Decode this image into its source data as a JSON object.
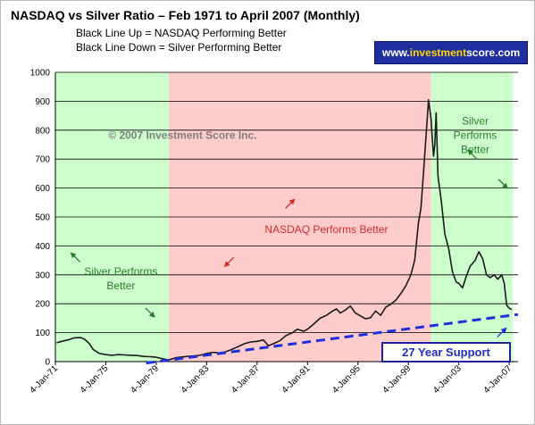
{
  "chart_data": {
    "type": "line",
    "title": "NASDAQ vs Silver Ratio – Feb 1971 to April 2007 (Monthly)",
    "subtitle_lines": [
      "Black Line Up = NASDAQ Performing Better",
      "Black Line Down = Silver Performing Better"
    ],
    "watermark": "www.investmentscore.com",
    "watermark_parts": {
      "prefix": "www.",
      "highlight": "investment",
      "suffix": "score.com"
    },
    "copyright": "© 2007 Investment Score Inc.",
    "xlim": [
      1971,
      2007.7
    ],
    "ylim": [
      0,
      1000
    ],
    "y_ticks": [
      0,
      100,
      200,
      300,
      400,
      500,
      600,
      700,
      800,
      900,
      1000
    ],
    "x_ticks": [
      {
        "label": "4-Jan-71",
        "x": 1971.0
      },
      {
        "label": "4-Jan-75",
        "x": 1975.0
      },
      {
        "label": "4-Jan-79",
        "x": 1979.0
      },
      {
        "label": "4-Jan-83",
        "x": 1983.0
      },
      {
        "label": "4-Jan-87",
        "x": 1987.0
      },
      {
        "label": "4-Jan-91",
        "x": 1991.0
      },
      {
        "label": "4-Jan-95",
        "x": 1995.0
      },
      {
        "label": "4-Jan-99",
        "x": 1999.0
      },
      {
        "label": "4-Jan-03",
        "x": 2003.0
      },
      {
        "label": "4-Jan-07",
        "x": 2007.0
      }
    ],
    "grid": "horizontal",
    "regions": [
      {
        "from": 1971.0,
        "to": 1980.0,
        "color": "#ccffcc",
        "label_lines": [
          "Silver Performs",
          "Better"
        ],
        "label_color": "#2e7d2e"
      },
      {
        "from": 1980.0,
        "to": 2000.8,
        "color": "#ffcccc",
        "label_lines": [
          "NASDAQ Performs Better"
        ],
        "label_color": "#d42a2a"
      },
      {
        "from": 2000.8,
        "to": 2007.3,
        "color": "#ccffcc",
        "label_lines": [
          "Silver",
          "Performs",
          "Better"
        ],
        "label_color": "#2e7d2e"
      }
    ],
    "series": [
      {
        "color": "#1a1a1a",
        "points": [
          [
            1971.1,
            65
          ],
          [
            1971.5,
            70
          ],
          [
            1972.0,
            75
          ],
          [
            1972.5,
            82
          ],
          [
            1973.0,
            83
          ],
          [
            1973.3,
            78
          ],
          [
            1973.7,
            62
          ],
          [
            1974.0,
            42
          ],
          [
            1974.5,
            28
          ],
          [
            1975.0,
            24
          ],
          [
            1975.5,
            22
          ],
          [
            1976.0,
            24
          ],
          [
            1976.5,
            23
          ],
          [
            1977.0,
            22
          ],
          [
            1977.5,
            21
          ],
          [
            1978.0,
            18
          ],
          [
            1978.5,
            17
          ],
          [
            1979.0,
            15
          ],
          [
            1979.5,
            10
          ],
          [
            1980.0,
            6
          ],
          [
            1980.3,
            10
          ],
          [
            1980.6,
            14
          ],
          [
            1981.0,
            16
          ],
          [
            1981.5,
            18
          ],
          [
            1982.0,
            20
          ],
          [
            1982.5,
            22
          ],
          [
            1983.0,
            28
          ],
          [
            1983.5,
            32
          ],
          [
            1984.0,
            30
          ],
          [
            1984.5,
            34
          ],
          [
            1985.0,
            42
          ],
          [
            1985.5,
            52
          ],
          [
            1986.0,
            62
          ],
          [
            1986.5,
            68
          ],
          [
            1987.0,
            70
          ],
          [
            1987.5,
            75
          ],
          [
            1987.9,
            55
          ],
          [
            1988.3,
            62
          ],
          [
            1988.8,
            72
          ],
          [
            1989.3,
            90
          ],
          [
            1989.8,
            100
          ],
          [
            1990.2,
            112
          ],
          [
            1990.7,
            105
          ],
          [
            1991.0,
            112
          ],
          [
            1991.5,
            130
          ],
          [
            1992.0,
            150
          ],
          [
            1992.5,
            160
          ],
          [
            1993.0,
            175
          ],
          [
            1993.3,
            182
          ],
          [
            1993.6,
            168
          ],
          [
            1994.0,
            178
          ],
          [
            1994.4,
            192
          ],
          [
            1994.8,
            168
          ],
          [
            1995.2,
            158
          ],
          [
            1995.6,
            148
          ],
          [
            1996.0,
            152
          ],
          [
            1996.4,
            175
          ],
          [
            1996.8,
            160
          ],
          [
            1997.2,
            188
          ],
          [
            1997.6,
            198
          ],
          [
            1998.0,
            212
          ],
          [
            1998.4,
            235
          ],
          [
            1998.8,
            262
          ],
          [
            1999.2,
            300
          ],
          [
            1999.5,
            350
          ],
          [
            1999.8,
            480
          ],
          [
            2000.0,
            530
          ],
          [
            2000.2,
            650
          ],
          [
            2000.4,
            780
          ],
          [
            2000.6,
            905
          ],
          [
            2000.8,
            840
          ],
          [
            2000.9,
            770
          ],
          [
            2001.0,
            710
          ],
          [
            2001.1,
            750
          ],
          [
            2001.2,
            860
          ],
          [
            2001.35,
            640
          ],
          [
            2001.6,
            560
          ],
          [
            2001.9,
            440
          ],
          [
            2002.2,
            390
          ],
          [
            2002.5,
            310
          ],
          [
            2002.8,
            275
          ],
          [
            2003.0,
            270
          ],
          [
            2003.3,
            255
          ],
          [
            2003.6,
            295
          ],
          [
            2003.9,
            330
          ],
          [
            2004.3,
            350
          ],
          [
            2004.6,
            380
          ],
          [
            2004.9,
            355
          ],
          [
            2005.2,
            300
          ],
          [
            2005.5,
            290
          ],
          [
            2005.8,
            300
          ],
          [
            2006.1,
            285
          ],
          [
            2006.4,
            300
          ],
          [
            2006.6,
            272
          ],
          [
            2006.8,
            195
          ],
          [
            2007.0,
            185
          ],
          [
            2007.2,
            180
          ]
        ]
      }
    ],
    "support_line": {
      "color": "#1f2fdd",
      "from": [
        1978.2,
        -5
      ],
      "to": [
        2007.7,
        163
      ],
      "label": "27 Year Support"
    },
    "annotation_arrows": [
      {
        "color": "#2e7d2e",
        "dir": "up-left"
      },
      {
        "color": "#2e7d2e",
        "dir": "down-right"
      },
      {
        "color": "#d42a2a",
        "dir": "up-right"
      },
      {
        "color": "#d42a2a",
        "dir": "down-left"
      },
      {
        "color": "#2e7d2e",
        "dir": "up-left"
      },
      {
        "color": "#2e7d2e",
        "dir": "down-right"
      },
      {
        "color": "#1f2fdd",
        "dir": "up-right"
      }
    ]
  }
}
